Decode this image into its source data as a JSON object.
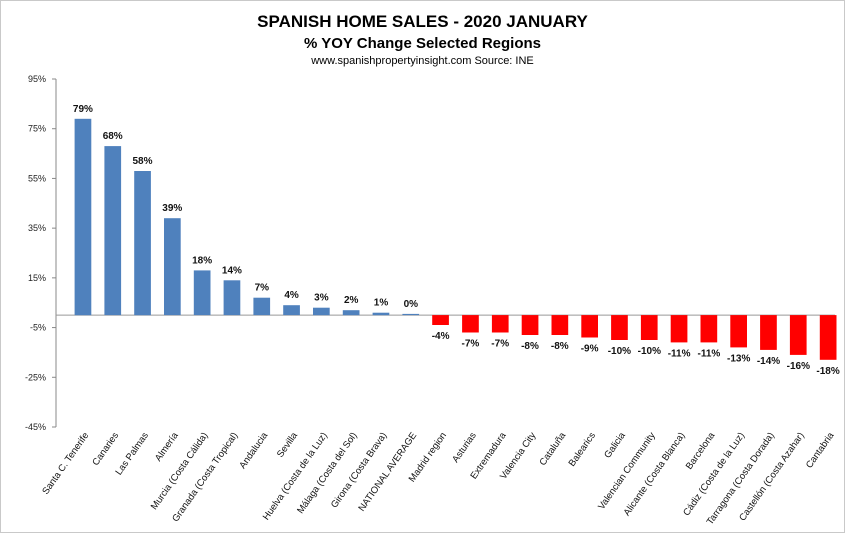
{
  "chart_data": {
    "type": "bar",
    "title": "SPANISH HOME SALES - 2020 JANUARY",
    "subtitle": "% YOY Change Selected Regions",
    "source": "www.spanishpropertyinsight.com Source:  INE",
    "ylim": [
      -45,
      95
    ],
    "yticks": [
      "95%",
      "75%",
      "55%",
      "35%",
      "15%",
      "-5%",
      "-25%",
      "-45%"
    ],
    "grid": false,
    "positive_color": "#4f81bd",
    "negative_color": "#ff0000",
    "categories": [
      "Santa C. Tenerife",
      "Canaries",
      "Las Palmas",
      "Almería",
      "Murcia (Costa Cálida)",
      "Granada (Costa Tropical)",
      "Andalucia",
      "Sevilla",
      "Huelva (Costa de la Luz)",
      "Málaga (Costa del Sol)",
      "Girona (Costa Brava)",
      "NATIONAL AVERAGE",
      "Madrid region",
      "Asturias",
      "Extremadura",
      "Valencia City",
      "Cataluña",
      "Balearics",
      "Galicia",
      "Valencian Community",
      "Alicante (Costa Blanca)",
      "Barcelona",
      "Cádiz (Costa de la Luz)",
      "Tarragona (Costa Dorada)",
      "Castellón (Costa Azahar)",
      "Cantabria"
    ],
    "values": [
      79,
      68,
      58,
      39,
      18,
      14,
      7,
      4,
      3,
      2,
      1,
      0.5,
      -4,
      -7,
      -7,
      -8,
      -8,
      -9,
      -10,
      -10,
      -11,
      -11,
      -13,
      -14,
      -16,
      -18
    ],
    "data_labels": [
      "79%",
      "68%",
      "58%",
      "39%",
      "18%",
      "14%",
      "7%",
      "4%",
      "3%",
      "2%",
      "1%",
      "0%",
      "-4%",
      "-7%",
      "-7%",
      "-8%",
      "-8%",
      "-9%",
      "-10%",
      "-10%",
      "-11%",
      "-11%",
      "-13%",
      "-14%",
      "-16%",
      "-18%"
    ]
  }
}
